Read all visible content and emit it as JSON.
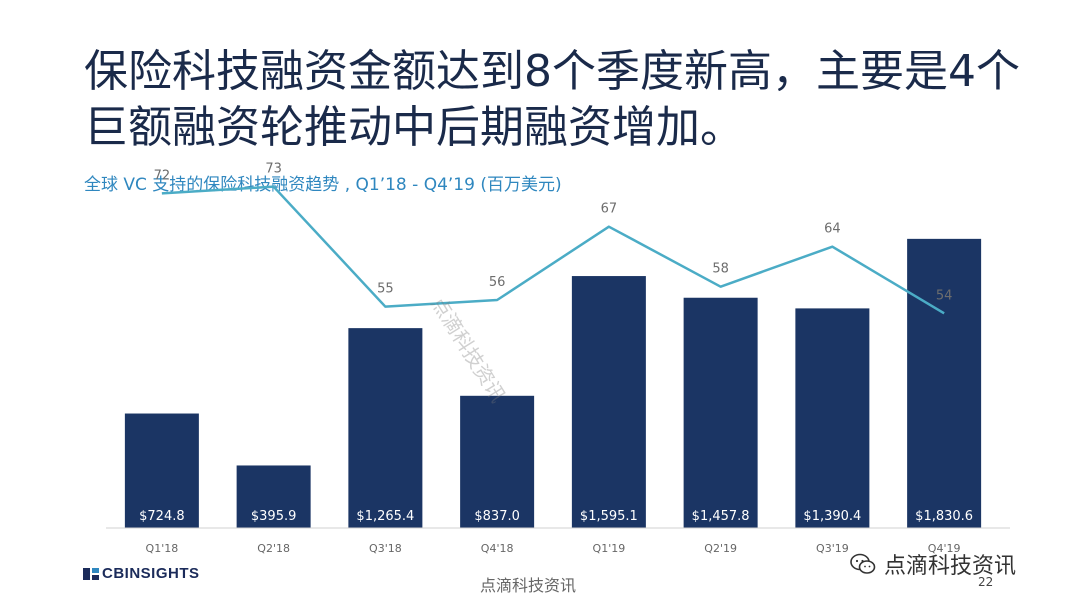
{
  "headline": {
    "line1": "保险科技融资金额达到8个季度新高，主要是4个",
    "line2": "巨额融资轮推动中后期融资增加。"
  },
  "subtitle": "全球 VC 支持的保险科技融资趋势 , Q1’18 -  Q4’19 (百万美元)",
  "chart_data": {
    "type": "bar",
    "categories": [
      "Q1'18",
      "Q2'18",
      "Q3'18",
      "Q4'18",
      "Q1'19",
      "Q2'19",
      "Q3'19",
      "Q4'19"
    ],
    "series": [
      {
        "type": "bar",
        "values": [
          724.8,
          395.9,
          1265.4,
          837.0,
          1595.1,
          1457.8,
          1390.4,
          1830.6
        ],
        "labels": [
          "$724.8",
          "$395.9",
          "$1,265.4",
          "$837.0",
          "$1,595.1",
          "$1,457.8",
          "$1,390.4",
          "$1,830.6"
        ],
        "color": "#1b3564"
      },
      {
        "type": "line",
        "values": [
          72,
          73,
          55,
          56,
          67,
          58,
          64,
          54
        ],
        "color": "#4bacc6"
      }
    ],
    "ylim": [
      0,
      1950
    ],
    "line_ylim": [
      20,
      80
    ],
    "grid": false,
    "legend": "none"
  },
  "footer": {
    "brand": "CBINSIGHTS",
    "watermark": "点滴科技资讯",
    "badge_text": "点滴科技资讯",
    "page": "22"
  },
  "colors": {
    "bar": "#1b3564",
    "line": "#4bacc6",
    "title": "#1a2a4a",
    "subtitle": "#2f87bf"
  }
}
